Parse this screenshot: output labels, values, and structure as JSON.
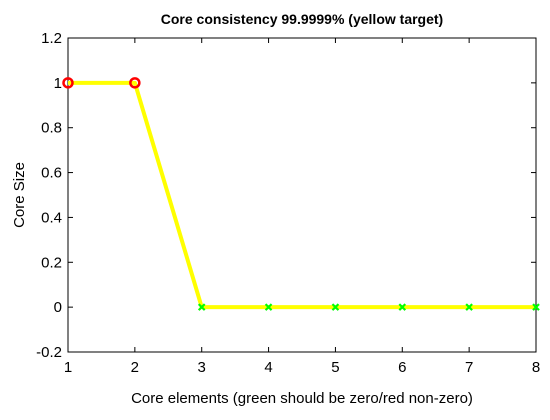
{
  "chart_data": {
    "type": "line",
    "title": "Core consistency 99.9999% (yellow target)",
    "xlabel": "Core elements (green should be zero/red non-zero)",
    "ylabel": "Core Size",
    "xlim": [
      1,
      8
    ],
    "ylim": [
      -0.2,
      1.2
    ],
    "xticks": [
      "1",
      "2",
      "3",
      "4",
      "5",
      "6",
      "7",
      "8"
    ],
    "yticks": [
      "-0.2",
      "0",
      "0.2",
      "0.4",
      "0.6",
      "0.8",
      "1",
      "1.2"
    ],
    "grid": false,
    "series": [
      {
        "role": "target",
        "color": "#ffff00",
        "x": [
          1,
          2,
          3,
          4,
          5,
          6,
          7,
          8
        ],
        "y": [
          1,
          1,
          0,
          0,
          0,
          0,
          0,
          0
        ]
      },
      {
        "role": "non-zero-markers",
        "marker": "circle",
        "color": "#ff0000",
        "x": [
          1,
          2
        ],
        "y": [
          1,
          1
        ]
      },
      {
        "role": "zero-markers",
        "marker": "x",
        "color": "#00ff00",
        "x": [
          3,
          4,
          5,
          6,
          7,
          8
        ],
        "y": [
          0,
          0,
          0,
          0,
          0,
          0
        ]
      }
    ]
  }
}
